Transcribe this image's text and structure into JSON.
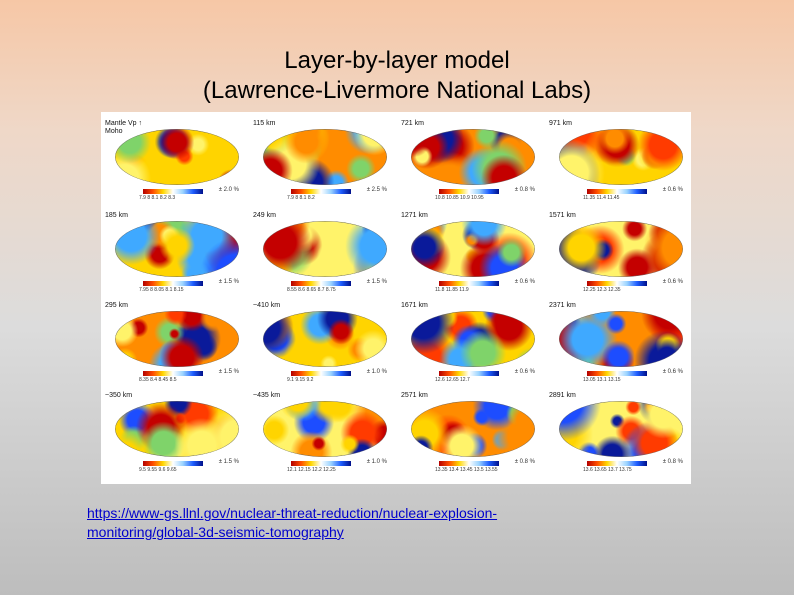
{
  "title_line1": "Layer-by-layer model",
  "title_line2": "(Lawrence-Livermore National Labs)",
  "link_line1": "https://www-gs.llnl.gov/nuclear-threat-reduction/nuclear-explosion-",
  "link_line2": "monitoring/global-3d-seismic-tomography",
  "figure": {
    "left_column": [
      {
        "depth": "Mantle Vp ↑",
        "map_label": "Moho",
        "ticks": "7.9  8  8.1  8.2  8.3",
        "range": "± 2.0 %"
      },
      {
        "depth": "185 km",
        "map_label": "",
        "ticks": "7.95  8  8.05 8.1 8.15",
        "range": "± 1.5 %"
      },
      {
        "depth": "295 km",
        "map_label": "",
        "ticks": "8.35  8.4  8.45  8.5",
        "range": "± 1.5 %"
      },
      {
        "depth": "~350 km",
        "map_label": "",
        "ticks": "9.5  9.55  9.6  9.65",
        "range": "± 1.5 %"
      }
    ],
    "second_column": [
      {
        "depth": "115 km",
        "ticks": "7.9  8  8.1  8.2",
        "range": "± 2.5 %"
      },
      {
        "depth": "249 km",
        "ticks": "8.55  8.6  8.65  8.7  8.75",
        "range": "± 1.5 %"
      },
      {
        "depth": "~410 km",
        "ticks": "9.1  9.15  9.2",
        "range": "± 1.0 %"
      },
      {
        "depth": "~435 km",
        "ticks": "12.1  12.15  12.2  12.25",
        "range": "± 1.0 %"
      }
    ],
    "third_column": [
      {
        "depth": "721 km",
        "ticks": "10.8  10.85  10.9  10.95",
        "range": "± 0.8 %"
      },
      {
        "depth": "1271 km",
        "ticks": "11.8  11.85  11.9",
        "range": "± 0.6 %"
      },
      {
        "depth": "1671 km",
        "ticks": "12.6  12.65  12.7",
        "range": "± 0.6 %"
      },
      {
        "depth": "2571 km",
        "ticks": "13.35 13.4 13.45 13.5 13.55",
        "range": "± 0.8 %"
      }
    ],
    "fourth_column": [
      {
        "depth": "971 km",
        "ticks": "11.35  11.4  11.45",
        "range": "± 0.6 %"
      },
      {
        "depth": "1571 km",
        "ticks": "12.25  12.3  12.35",
        "range": "± 0.6 %"
      },
      {
        "depth": "2371 km",
        "ticks": "13.05  13.1  13.15",
        "range": "± 0.6 %"
      },
      {
        "depth": "2891 km",
        "ticks": "13.6  13.65  13.7  13.75",
        "range": "± 0.8 %"
      }
    ]
  }
}
